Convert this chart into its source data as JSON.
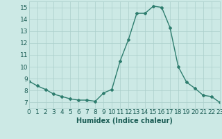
{
  "x": [
    0,
    1,
    2,
    3,
    4,
    5,
    6,
    7,
    8,
    9,
    10,
    11,
    12,
    13,
    14,
    15,
    16,
    17,
    18,
    19,
    20,
    21,
    22,
    23
  ],
  "y": [
    8.8,
    8.4,
    8.1,
    7.7,
    7.5,
    7.3,
    7.2,
    7.2,
    7.1,
    7.8,
    8.1,
    10.5,
    12.3,
    14.5,
    14.5,
    15.1,
    15.0,
    13.3,
    10.0,
    8.7,
    8.2,
    7.6,
    7.5,
    7.0
  ],
  "line_color": "#2e7d6e",
  "marker": "D",
  "marker_size": 2.0,
  "line_width": 1.0,
  "xlabel": "Humidex (Indice chaleur)",
  "xlim": [
    0,
    23
  ],
  "ylim": [
    6.5,
    15.5
  ],
  "yticks": [
    7,
    8,
    9,
    10,
    11,
    12,
    13,
    14,
    15
  ],
  "xticks": [
    0,
    1,
    2,
    3,
    4,
    5,
    6,
    7,
    8,
    9,
    10,
    11,
    12,
    13,
    14,
    15,
    16,
    17,
    18,
    19,
    20,
    21,
    22,
    23
  ],
  "xtick_labels": [
    "0",
    "1",
    "2",
    "3",
    "4",
    "5",
    "6",
    "7",
    "8",
    "9",
    "10",
    "11",
    "12",
    "13",
    "14",
    "15",
    "16",
    "17",
    "18",
    "19",
    "20",
    "21",
    "22",
    "23"
  ],
  "background_color": "#cce9e5",
  "grid_color": "#aacfcb",
  "axis_fontsize": 6.5,
  "label_fontsize": 7.0
}
